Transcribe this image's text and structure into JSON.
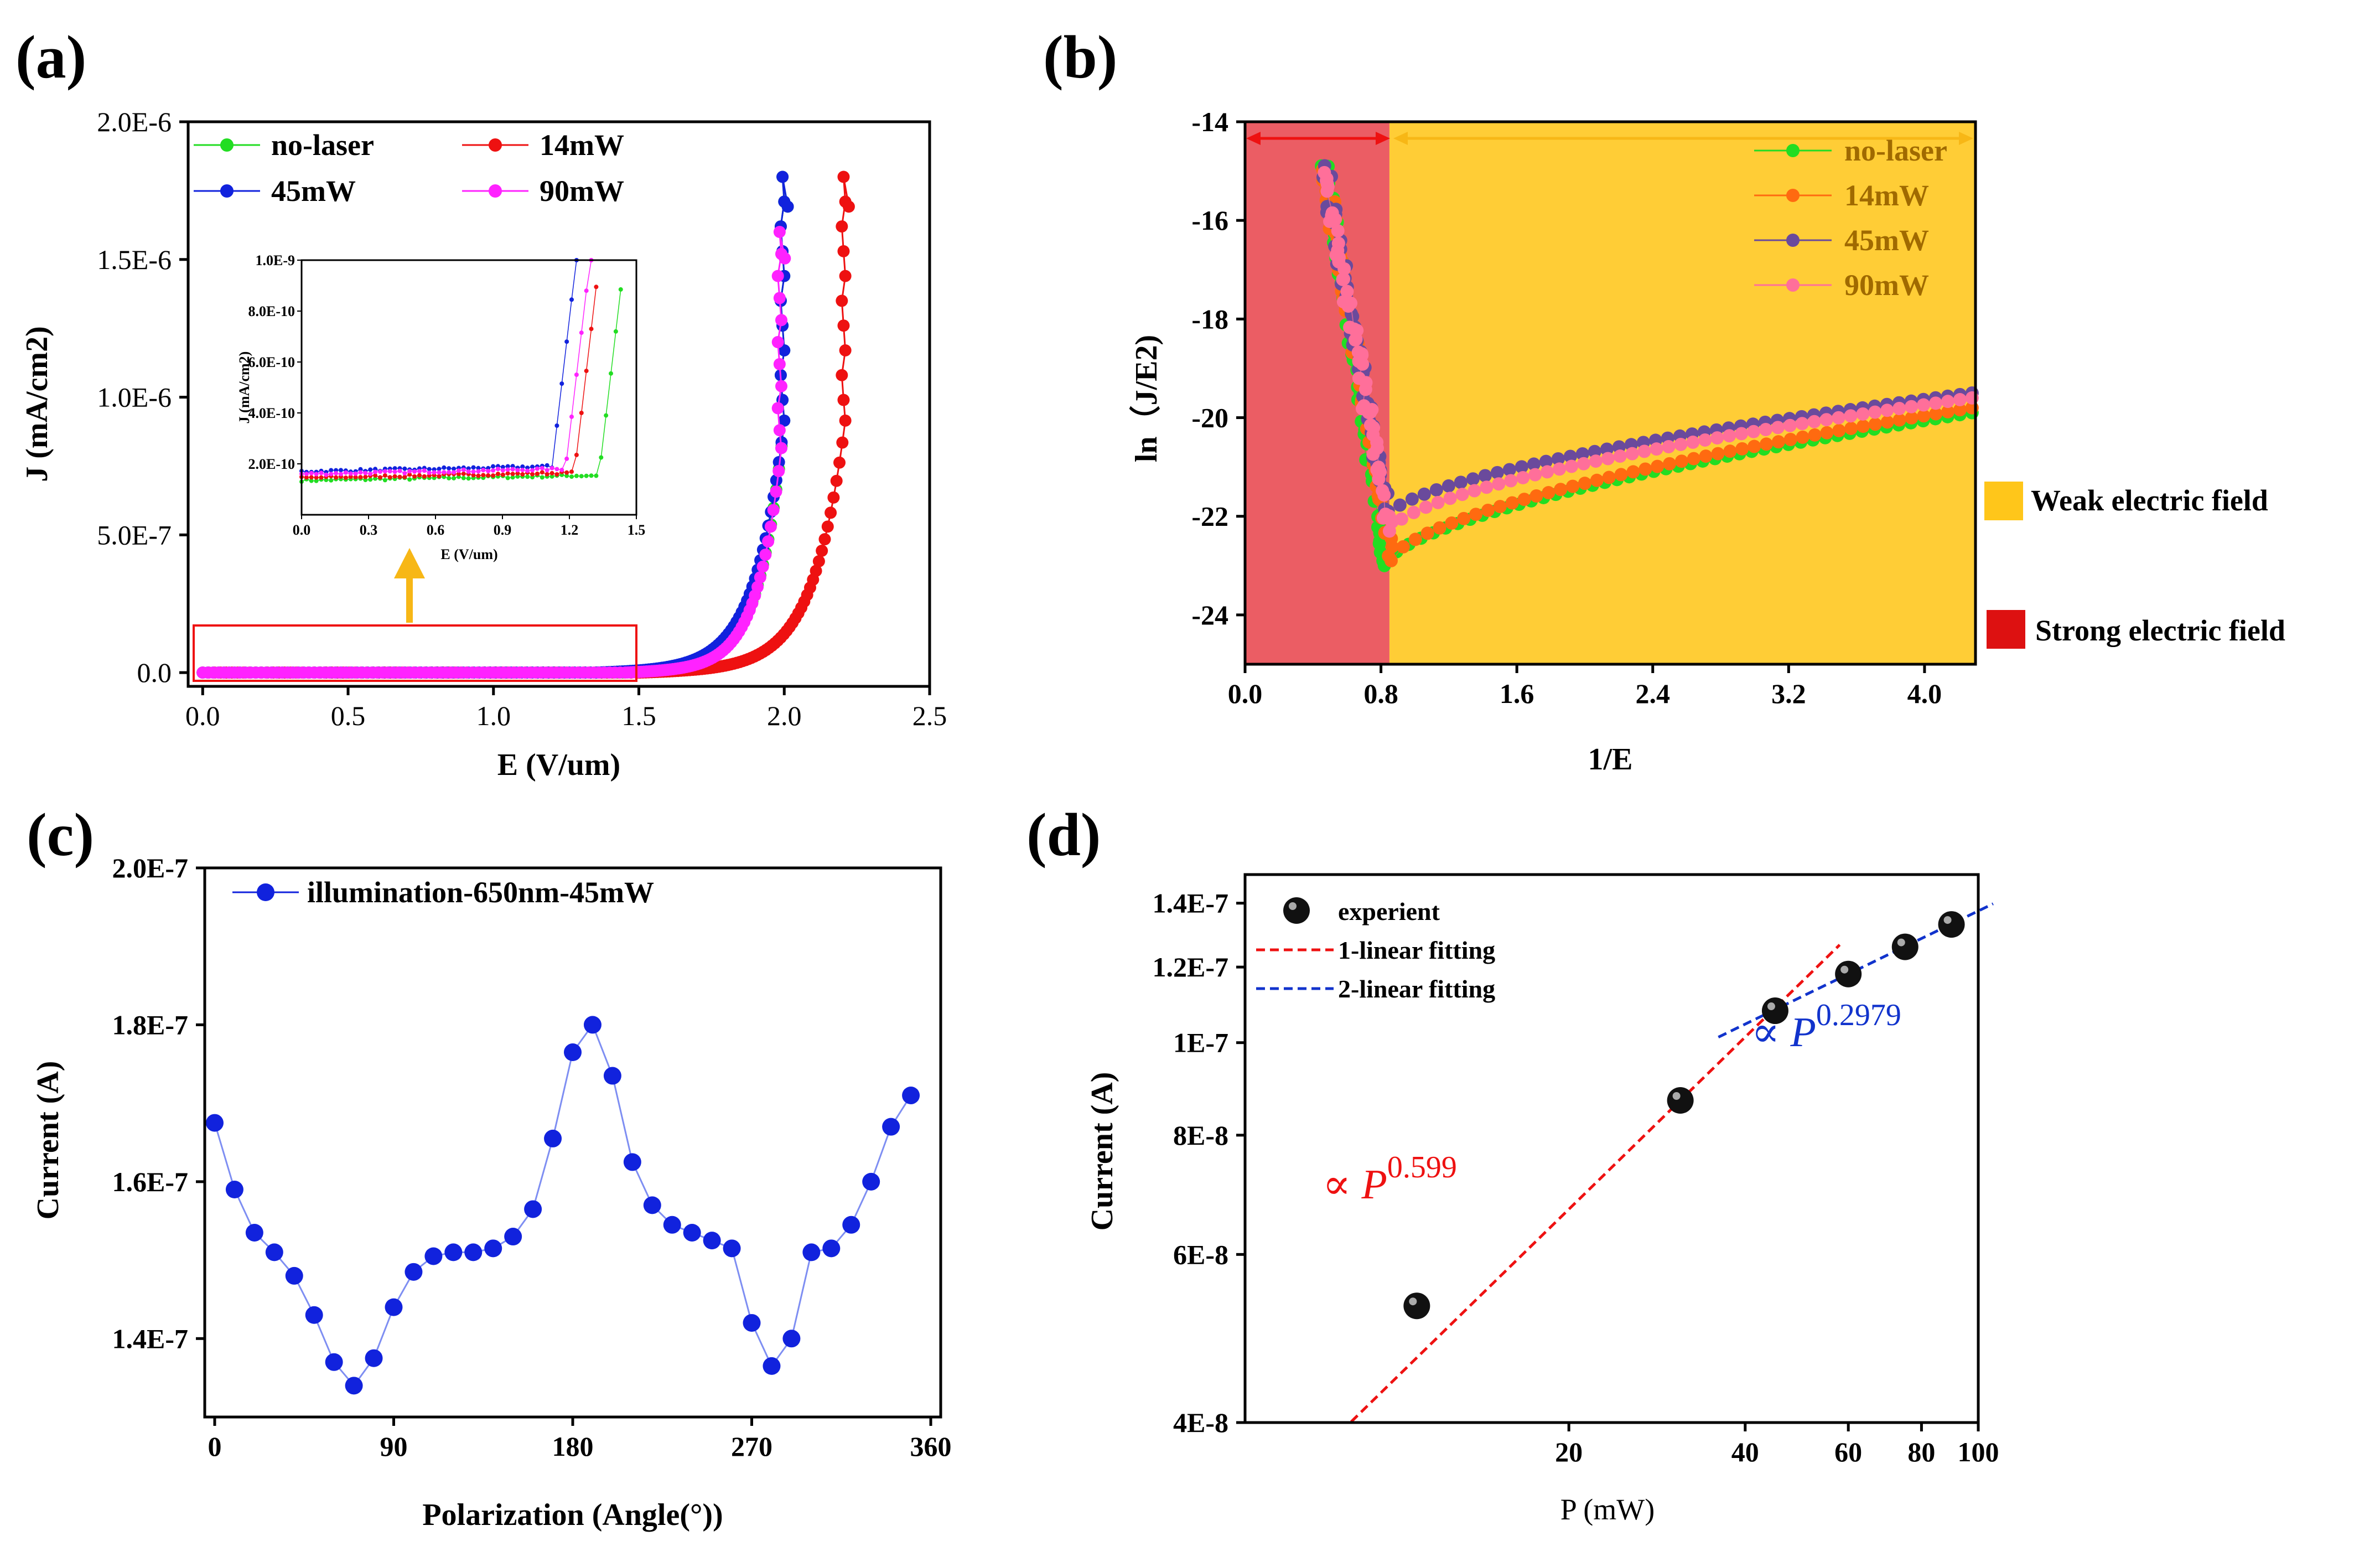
{
  "panel_labels": [
    "(a)",
    "(b)",
    "(c)",
    "(d)"
  ],
  "colors": {
    "green": "#22dd22",
    "red": "#ee1111",
    "blue": "#1122dd",
    "magenta": "#ff22ff",
    "orange": "#ff6a10",
    "purple": "#6a4a9c",
    "pink": "#ff6f9a",
    "yellow": "#ffc61a",
    "rose": "#e8474f",
    "arrow": "#f7b716",
    "fit_red": "#ee1111",
    "fit_blue": "#1133cc",
    "black": "#000000"
  },
  "chart_data": [
    {
      "id": "a",
      "type": "line",
      "title": "",
      "xlabel": "E (V/um)",
      "ylabel": "J (mA/cm2)",
      "xlim": [
        -0.05,
        2.5
      ],
      "ylim": [
        -5e-08,
        2e-06
      ],
      "xticks": [
        "0.0",
        "0.5",
        "1.0",
        "1.5",
        "2.0",
        "2.5"
      ],
      "yticks": [
        "0.0",
        "5.0E-7",
        "1.0E-6",
        "1.5E-6",
        "2.0E-6"
      ],
      "legend": [
        "no-laser",
        "14mW",
        "45mW",
        "90mW"
      ],
      "series": [
        {
          "name": "no-laser",
          "color": "green",
          "onset": 1.45,
          "max_x": 2.0,
          "max_y": 1.8e-06
        },
        {
          "name": "14mW",
          "color": "red",
          "onset": 1.5,
          "max_x": 2.21,
          "max_y": 1.8e-06
        },
        {
          "name": "45mW",
          "color": "blue",
          "onset": 1.35,
          "max_x": 2.0,
          "max_y": 1.8e-06
        },
        {
          "name": "90mW",
          "color": "magenta",
          "onset": 1.45,
          "max_x": 1.99,
          "max_y": 1.6e-06
        }
      ],
      "annotation": "inset zoom of the 0–1.5 V/um region",
      "inset": {
        "xlabel": "E (V/um)",
        "ylabel": "J (mA/cm2)",
        "xlim": [
          0,
          1.5
        ],
        "ylim": [
          0,
          1e-09
        ],
        "xticks": [
          "0.0",
          "0.3",
          "0.6",
          "0.9",
          "1.2",
          "1.5"
        ],
        "yticks": [
          "2.0E-10",
          "4.0E-10",
          "6.0E-10",
          "8.0E-10",
          "1.0E-9"
        ],
        "series": [
          {
            "name": "no-laser",
            "color": "green",
            "base": 1.35e-10,
            "rise_x": 1.33
          },
          {
            "name": "14mW",
            "color": "red",
            "base": 1.45e-10,
            "rise_x": 1.22
          },
          {
            "name": "45mW",
            "color": "blue",
            "base": 1.7e-10,
            "rise_x": 1.12
          },
          {
            "name": "90mW",
            "color": "magenta",
            "base": 1.6e-10,
            "rise_x": 1.18
          }
        ]
      }
    },
    {
      "id": "b",
      "type": "scatter",
      "title": "",
      "xlabel": "1/E",
      "ylabel": "ln（J/E2)",
      "xlim": [
        0.0,
        4.3
      ],
      "ylim": [
        -25,
        -14
      ],
      "xticks": [
        "0.0",
        "0.8",
        "1.6",
        "2.4",
        "3.2",
        "4.0"
      ],
      "yticks": [
        "-14",
        "-16",
        "-18",
        "-20",
        "-22",
        "-24"
      ],
      "regions": [
        {
          "name": "Strong electric field",
          "from": 0.0,
          "to": 0.85,
          "color": "rose"
        },
        {
          "name": "Weak electric field",
          "from": 0.85,
          "to": 4.3,
          "color": "yellow"
        }
      ],
      "legend": [
        "no-laser",
        "14mW",
        "45mW",
        "90mW"
      ],
      "series": [
        {
          "name": "no-laser",
          "color": "green",
          "min_x": 0.82,
          "min_y": -23.0,
          "end_y": -19.9
        },
        {
          "name": "14mW",
          "color": "orange",
          "min_x": 0.86,
          "min_y": -22.9,
          "end_y": -19.8
        },
        {
          "name": "45mW",
          "color": "purple",
          "min_x": 0.84,
          "min_y": -22.0,
          "end_y": -19.5
        },
        {
          "name": "90mW",
          "color": "pink",
          "min_x": 0.85,
          "min_y": -22.3,
          "end_y": -19.6
        }
      ]
    },
    {
      "id": "c",
      "type": "line",
      "title": "",
      "xlabel": "Polarization (Angle(°))",
      "ylabel": "Current (A)",
      "xlim": [
        -5,
        365
      ],
      "ylim": [
        1.3e-07,
        2e-07
      ],
      "xticks": [
        "0",
        "90",
        "180",
        "270",
        "360"
      ],
      "yticks": [
        "1.4E-7",
        "1.6E-7",
        "1.8E-7",
        "2.0E-7"
      ],
      "legend": [
        "illumination-650nm-45mW"
      ],
      "series": [
        {
          "name": "illumination-650nm-45mW",
          "color": "blue",
          "x": [
            0,
            10,
            20,
            30,
            40,
            50,
            60,
            70,
            80,
            90,
            100,
            110,
            120,
            130,
            140,
            150,
            160,
            170,
            180,
            190,
            200,
            210,
            220,
            230,
            240,
            250,
            260,
            270,
            280,
            290,
            300,
            310,
            320,
            330,
            340,
            350
          ],
          "y": [
            1.675e-07,
            1.59e-07,
            1.535e-07,
            1.51e-07,
            1.48e-07,
            1.43e-07,
            1.37e-07,
            1.34e-07,
            1.375e-07,
            1.44e-07,
            1.485e-07,
            1.505e-07,
            1.51e-07,
            1.51e-07,
            1.515e-07,
            1.53e-07,
            1.565e-07,
            1.655e-07,
            1.765e-07,
            1.8e-07,
            1.735e-07,
            1.625e-07,
            1.57e-07,
            1.545e-07,
            1.535e-07,
            1.525e-07,
            1.515e-07,
            1.42e-07,
            1.365e-07,
            1.4e-07,
            1.51e-07,
            1.515e-07,
            1.545e-07,
            1.6e-07,
            1.67e-07,
            1.71e-07
          ]
        }
      ]
    },
    {
      "id": "d",
      "type": "scatter",
      "title": "",
      "xlabel": "P (mW)",
      "ylabel": "Current (A)",
      "xscale": "log",
      "yscale": "log",
      "xlim": [
        5.6,
        100
      ],
      "ylim": [
        4e-08,
        1.5e-07
      ],
      "xticks": [
        "20",
        "40",
        "60",
        "80",
        "100"
      ],
      "yticks": [
        "4E-8",
        "6E-8",
        "8E-8",
        "1E-7",
        "1.2E-7",
        "1.4E-7"
      ],
      "legend": [
        "experient",
        "1-linear fitting",
        "2-linear fitting"
      ],
      "series": [
        {
          "name": "experient",
          "color": "black",
          "x": [
            11,
            31,
            45,
            60,
            75,
            90
          ],
          "y": [
            5.3e-08,
            8.7e-08,
            1.08e-07,
            1.18e-07,
            1.26e-07,
            1.33e-07
          ]
        }
      ],
      "fits": [
        {
          "name": "1-linear fitting",
          "color": "fit_red",
          "exponent": 0.599,
          "x_range": [
            8.5,
            58
          ]
        },
        {
          "name": "2-linear fitting",
          "color": "fit_blue",
          "exponent": 0.2979,
          "x_range": [
            36,
            106
          ]
        }
      ],
      "annotations": [
        {
          "text": "∝ ",
          "color": "fit_red",
          "base": "P",
          "sup": "0.599"
        },
        {
          "text": "∝ ",
          "color": "fit_blue",
          "base": "P",
          "sup": "0.2979"
        }
      ]
    }
  ]
}
